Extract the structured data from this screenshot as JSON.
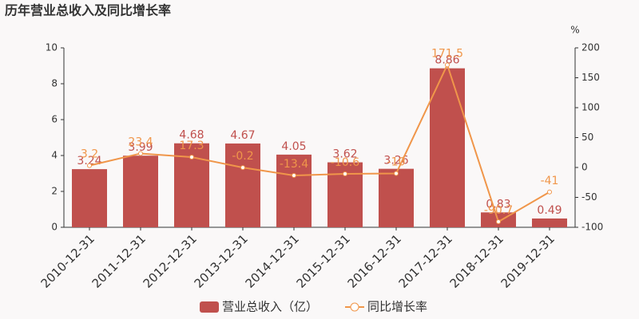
{
  "chart_data": {
    "type": "bar",
    "title": "历年营业总收入及同比增长率",
    "categories": [
      "2010-12-31",
      "2011-12-31",
      "2012-12-31",
      "2013-12-31",
      "2014-12-31",
      "2015-12-31",
      "2016-12-31",
      "2017-12-31",
      "2018-12-31",
      "2019-12-31"
    ],
    "series": [
      {
        "name": "营业总收入（亿）",
        "type": "bar",
        "color": "#c0504d",
        "values": [
          3.24,
          3.99,
          4.68,
          4.67,
          4.05,
          3.62,
          3.26,
          8.86,
          0.83,
          0.49
        ]
      },
      {
        "name": "同比增长率",
        "type": "line",
        "axis": "y2",
        "color": "#f0964a",
        "values": [
          3.2,
          23.4,
          17.3,
          -0.2,
          -13.4,
          -10.6,
          -10,
          171.5,
          -90.7,
          -41
        ]
      }
    ],
    "ylim": [
      0,
      10
    ],
    "yticks": [
      0,
      2,
      4,
      6,
      8,
      10
    ],
    "y2label": "%",
    "y2lim": [
      -100,
      200
    ],
    "y2ticks": [
      -100,
      -50,
      0,
      50,
      100,
      150,
      200
    ],
    "grid": false
  }
}
